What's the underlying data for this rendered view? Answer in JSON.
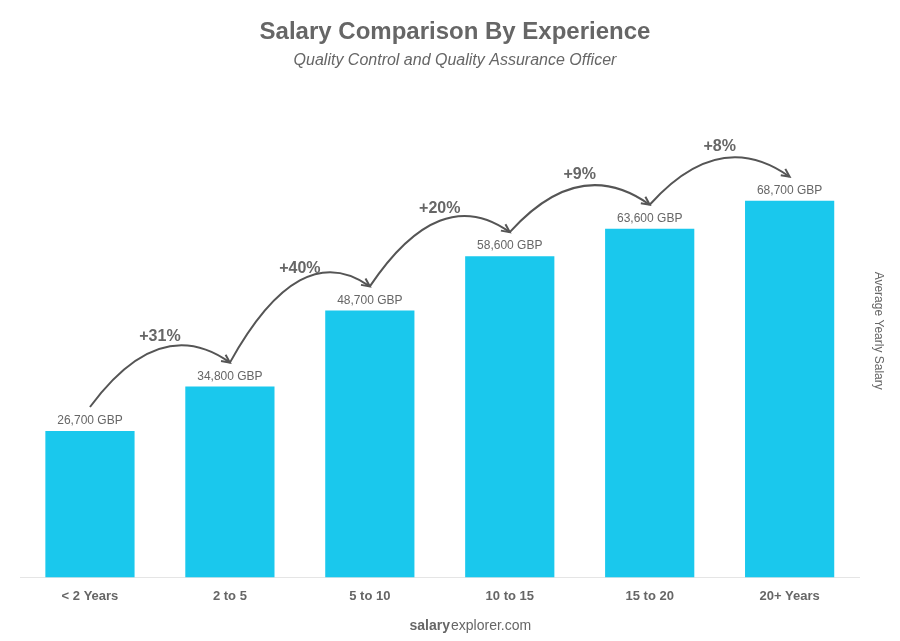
{
  "chart_data": {
    "type": "bar",
    "title": "Salary Comparison By Experience",
    "subtitle": "Quality Control and Quality Assurance Officer",
    "ylabel": "Average Yearly Salary",
    "categories": [
      "< 2 Years",
      "2 to 5",
      "5 to 10",
      "10 to 15",
      "15 to 20",
      "20+ Years"
    ],
    "values": [
      26700,
      34800,
      48700,
      58600,
      63600,
      68700
    ],
    "value_labels": [
      "26,700 GBP",
      "34,800 GBP",
      "48,700 GBP",
      "58,600 GBP",
      "63,600 GBP",
      "68,700 GBP"
    ],
    "data_labels": true,
    "color": "#1ac8ed",
    "ylim": [
      0,
      90000
    ],
    "grid": false,
    "tick_labels": "x",
    "annotations": [
      "+31%",
      "+40%",
      "+20%",
      "+9%",
      "+8%"
    ],
    "footer": [
      "salary",
      "explorer.com"
    ]
  }
}
